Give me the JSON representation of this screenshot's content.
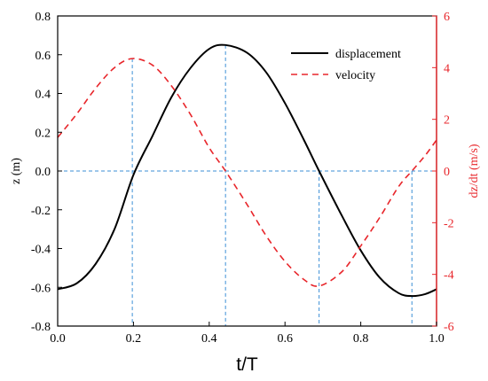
{
  "chart_data": {
    "type": "line",
    "xlabel": "t/T",
    "ylabel_left": "z (m)",
    "ylabel_right": "dz/dt (m/s)",
    "xlim": [
      0.0,
      1.0
    ],
    "ylim_left": [
      -0.8,
      0.8
    ],
    "ylim_right": [
      -6,
      6
    ],
    "x_ticks": [
      "0.0",
      "0.2",
      "0.4",
      "0.6",
      "0.8",
      "1.0"
    ],
    "y_left_ticks": [
      "-0.8",
      "-0.6",
      "-0.4",
      "-0.2",
      "0.0",
      "0.2",
      "0.4",
      "0.6",
      "0.8"
    ],
    "y_right_ticks": [
      "-6",
      "-4",
      "-2",
      "0",
      "2",
      "4",
      "6"
    ],
    "legend_position": "top-right",
    "colors": {
      "displacement": "#000000",
      "velocity": "#e8262b",
      "guides": "#3b8fd6"
    },
    "series": [
      {
        "name": "displacement",
        "axis": "left",
        "style": "solid",
        "x": [
          0.0,
          0.05,
          0.1,
          0.15,
          0.2,
          0.25,
          0.3,
          0.35,
          0.4,
          0.443,
          0.5,
          0.55,
          0.6,
          0.65,
          0.69,
          0.75,
          0.8,
          0.85,
          0.9,
          0.935,
          0.97,
          1.0
        ],
        "y": [
          -0.61,
          -0.58,
          -0.48,
          -0.3,
          -0.02,
          0.18,
          0.38,
          0.53,
          0.63,
          0.65,
          0.61,
          0.51,
          0.35,
          0.16,
          0.0,
          -0.23,
          -0.41,
          -0.55,
          -0.63,
          -0.645,
          -0.635,
          -0.61
        ]
      },
      {
        "name": "velocity",
        "axis": "right",
        "style": "dashed",
        "x": [
          0.0,
          0.05,
          0.1,
          0.15,
          0.197,
          0.25,
          0.3,
          0.35,
          0.4,
          0.443,
          0.5,
          0.55,
          0.6,
          0.65,
          0.69,
          0.75,
          0.8,
          0.85,
          0.9,
          0.935,
          0.97,
          1.0
        ],
        "y": [
          1.3,
          2.2,
          3.2,
          4.0,
          4.35,
          4.1,
          3.3,
          2.2,
          0.9,
          0.0,
          -1.3,
          -2.5,
          -3.5,
          -4.2,
          -4.45,
          -3.9,
          -2.9,
          -1.8,
          -0.6,
          0.0,
          0.6,
          1.2
        ]
      }
    ],
    "guide_lines": {
      "horizontal_y": 0.0,
      "vertical_x": [
        0.197,
        0.443,
        0.69,
        0.935
      ]
    }
  }
}
